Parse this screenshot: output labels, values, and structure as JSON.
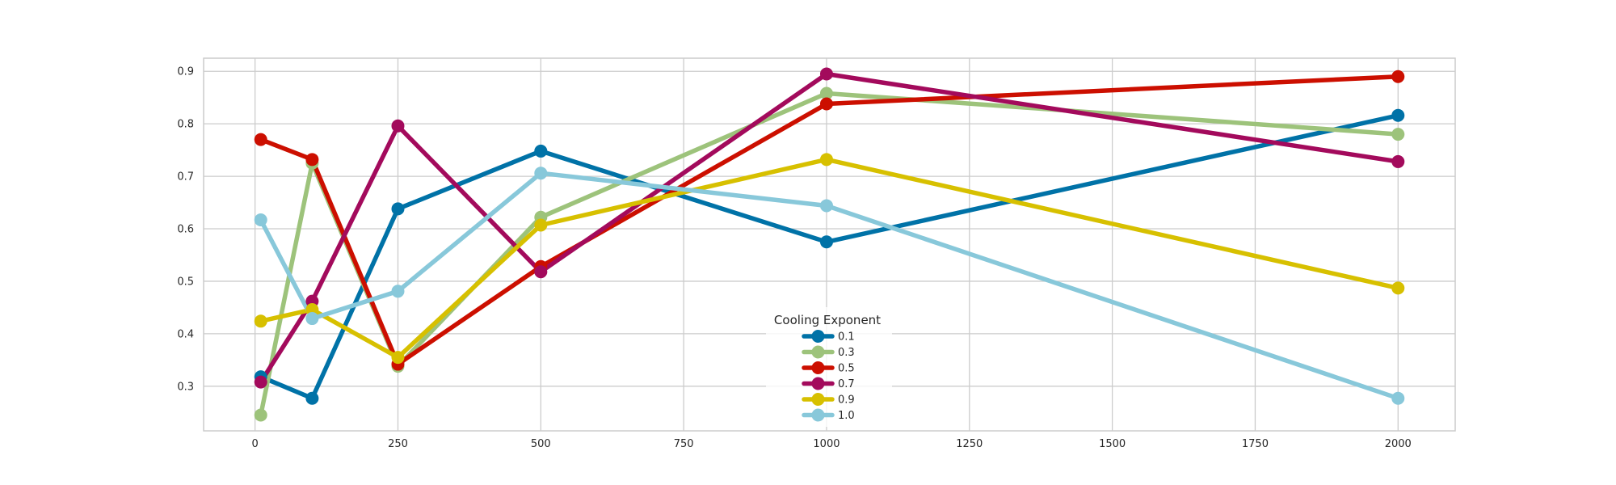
{
  "chart_data": {
    "type": "line",
    "x": [
      10,
      100,
      250,
      500,
      1000,
      2000
    ],
    "xticks": [
      0,
      250,
      500,
      750,
      1000,
      1250,
      1500,
      1750,
      2000
    ],
    "yticks": [
      0.3,
      0.4,
      0.5,
      0.6,
      0.7,
      0.8,
      0.9
    ],
    "xlim": [
      -90,
      2100
    ],
    "ylim": [
      0.215,
      0.925
    ],
    "grid": true,
    "legend": {
      "title": "Cooling Exponent",
      "placement": "lower-center"
    },
    "series": [
      {
        "name": "0.1",
        "color": "#0072a7",
        "values": [
          0.318,
          0.277,
          0.638,
          0.748,
          0.575,
          0.816
        ]
      },
      {
        "name": "0.3",
        "color": "#9dc37b",
        "values": [
          0.245,
          0.725,
          0.338,
          0.622,
          0.858,
          0.78
        ]
      },
      {
        "name": "0.5",
        "color": "#cc0f00",
        "values": [
          0.77,
          0.732,
          0.342,
          0.528,
          0.838,
          0.89
        ]
      },
      {
        "name": "0.7",
        "color": "#a30a5c",
        "values": [
          0.308,
          0.462,
          0.796,
          0.518,
          0.895,
          0.728
        ]
      },
      {
        "name": "0.9",
        "color": "#d7c000",
        "values": [
          0.424,
          0.446,
          0.355,
          0.607,
          0.732,
          0.487
        ]
      },
      {
        "name": "1.0",
        "color": "#88c8da",
        "values": [
          0.617,
          0.429,
          0.481,
          0.706,
          0.644,
          0.277
        ]
      }
    ]
  }
}
